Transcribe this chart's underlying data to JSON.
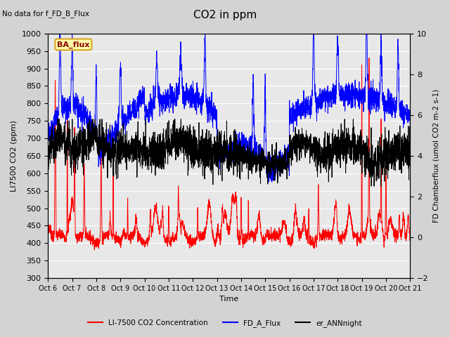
{
  "title": "CO2 in ppm",
  "no_data_text": "No data for f_FD_B_Flux",
  "ba_flux_label": "BA_flux",
  "xlabel": "Time",
  "ylabel_left": "LI7500 CO2 (ppm)",
  "ylabel_right": "FD Chamberflux (umol CO2 m-2 s-1)",
  "ylim_left": [
    300,
    1000
  ],
  "ylim_right": [
    -2,
    10
  ],
  "yticks_left": [
    300,
    350,
    400,
    450,
    500,
    550,
    600,
    650,
    700,
    750,
    800,
    850,
    900,
    950,
    1000
  ],
  "yticks_right": [
    -2,
    0,
    2,
    4,
    6,
    8,
    10
  ],
  "xtick_labels": [
    "Oct 6",
    "Oct 7",
    "Oct 8",
    "Oct 9",
    "Oct 10",
    "Oct 11",
    "Oct 12",
    "Oct 13",
    "Oct 14",
    "Oct 15",
    "Oct 16",
    "Oct 17",
    "Oct 18",
    "Oct 19",
    "Oct 20",
    "Oct 21"
  ],
  "line_colors": [
    "red",
    "blue",
    "black"
  ],
  "legend_labels": [
    "LI-7500 CO2 Concentration",
    "FD_A_Flux",
    "er_ANNnight"
  ],
  "background_color": "#d3d3d3",
  "plot_bg_color": "#e8e8e8",
  "n_points": 3000
}
